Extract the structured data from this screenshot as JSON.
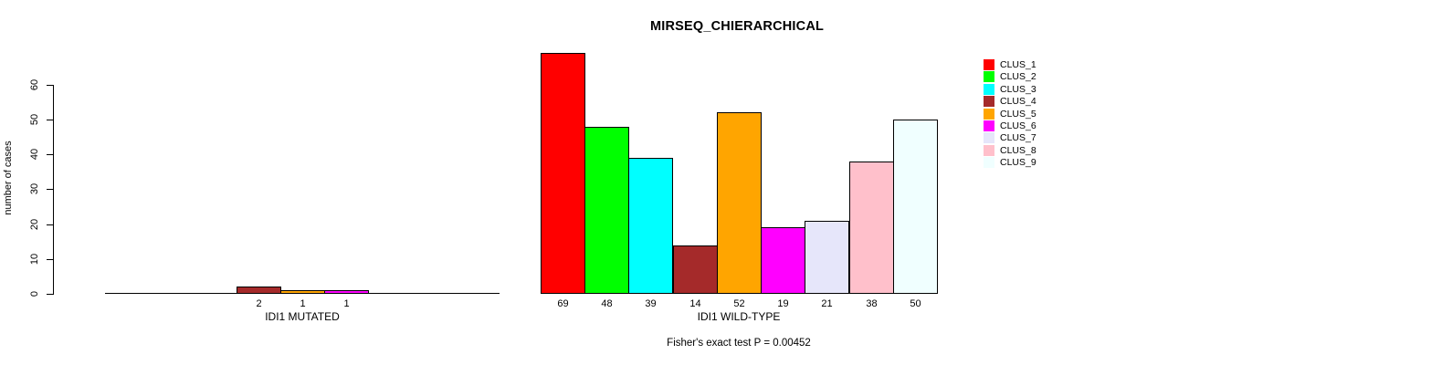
{
  "title": "MIRSEQ_CHIERARCHICAL",
  "chart_data": {
    "type": "bar",
    "title": "MIRSEQ_CHIERARCHICAL",
    "xlabel": "",
    "ylabel": "number of cases",
    "ylim": [
      0,
      69
    ],
    "yticks": [
      0,
      10,
      20,
      30,
      40,
      50,
      60
    ],
    "grid": false,
    "legend_position": "right",
    "clusters": [
      {
        "label": "CLUS_1",
        "color": "#FF0000"
      },
      {
        "label": "CLUS_2",
        "color": "#00FF00"
      },
      {
        "label": "CLUS_3",
        "color": "#00FFFF"
      },
      {
        "label": "CLUS_4",
        "color": "#A52A2A"
      },
      {
        "label": "CLUS_5",
        "color": "#FFA500"
      },
      {
        "label": "CLUS_6",
        "color": "#FF00FF"
      },
      {
        "label": "CLUS_7",
        "color": "#E6E6FA"
      },
      {
        "label": "CLUS_8",
        "color": "#FFC0CB"
      },
      {
        "label": "CLUS_9",
        "color": "#F0FFFF"
      }
    ],
    "groups": [
      {
        "label": "IDI1 MUTATED",
        "values": [
          0,
          0,
          0,
          2,
          1,
          1,
          0,
          0,
          0
        ]
      },
      {
        "label": "IDI1 WILD-TYPE",
        "values": [
          69,
          48,
          39,
          14,
          52,
          19,
          21,
          38,
          50
        ]
      }
    ],
    "footnote": "Fisher's exact test P = 0.00452"
  }
}
